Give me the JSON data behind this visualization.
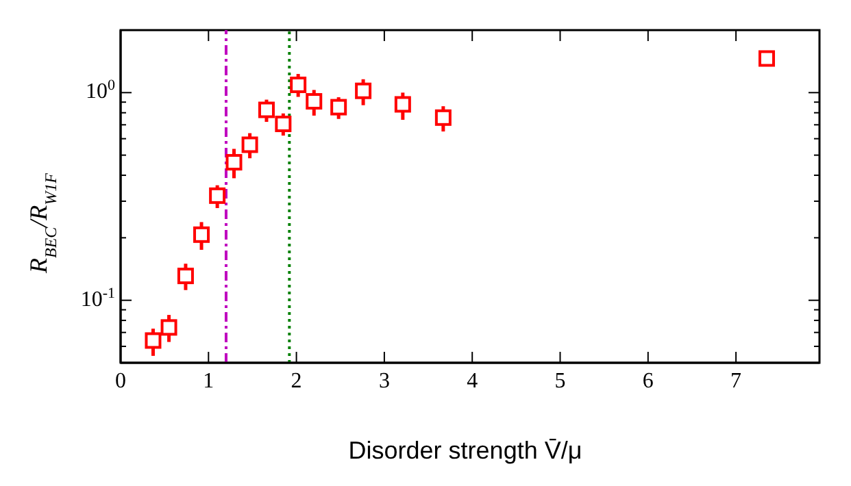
{
  "chart_data": {
    "type": "scatter",
    "xlabel": "Disorder strength V̄/μ",
    "ylabel": "R$_{BEC}$/R$_{W1F}$",
    "x": [
      0.37,
      0.55,
      0.74,
      0.92,
      1.1,
      1.29,
      1.47,
      1.66,
      1.85,
      2.02,
      2.2,
      2.48,
      2.76,
      3.21,
      3.67,
      7.35
    ],
    "series": [
      {
        "color": "#ff0000",
        "values": [
          0.064,
          0.074,
          0.131,
          0.207,
          0.319,
          0.462,
          0.561,
          0.826,
          0.707,
          1.09,
          0.908,
          0.851,
          1.02,
          0.878,
          0.758,
          1.46
        ],
        "errors": [
          [
            0.054,
            0.073
          ],
          [
            0.063,
            0.085
          ],
          [
            0.112,
            0.15
          ],
          [
            0.175,
            0.238
          ],
          [
            0.278,
            0.358
          ],
          [
            0.387,
            0.536
          ],
          [
            0.483,
            0.638
          ],
          [
            0.723,
            0.925
          ],
          [
            0.621,
            0.794
          ],
          [
            0.954,
            1.23
          ],
          [
            0.775,
            1.03
          ],
          [
            0.747,
            0.95
          ],
          [
            0.87,
            1.16
          ],
          [
            0.74,
            1.0
          ],
          [
            0.65,
            0.86
          ],
          null
        ]
      }
    ],
    "marker": "square",
    "log": "y",
    "xlim": [
      0,
      7.95
    ],
    "xticks": [
      0,
      1,
      2,
      3,
      4,
      5,
      6,
      7
    ],
    "ylim": [
      0.05,
      2
    ],
    "yticks": [
      {
        "value": 0.05,
        "label": null
      },
      {
        "value": 0.06,
        "label": null
      },
      {
        "value": 0.07,
        "label": null
      },
      {
        "value": 0.08,
        "label": null
      },
      {
        "value": 0.09,
        "label": null
      },
      {
        "value": 0.1,
        "label": "10$^{-1}$"
      },
      {
        "value": 0.2,
        "label": null
      },
      {
        "value": 0.3,
        "label": null
      },
      {
        "value": 0.4,
        "label": null
      },
      {
        "value": 0.5,
        "label": null
      },
      {
        "value": 0.6,
        "label": null
      },
      {
        "value": 0.7,
        "label": null
      },
      {
        "value": 0.8,
        "label": null
      },
      {
        "value": 0.9,
        "label": null
      },
      {
        "value": 1,
        "label": "10$^{0}$"
      },
      {
        "value": 2,
        "label": null
      }
    ],
    "ref_lines": [
      {
        "axis": "x",
        "value": 1.2,
        "color": "#bf00bf",
        "line_style": "dashed"
      },
      {
        "axis": "x",
        "value": 1.92,
        "color": "#008000",
        "line_style": "dotted"
      }
    ],
    "grid": false,
    "legend": false
  }
}
